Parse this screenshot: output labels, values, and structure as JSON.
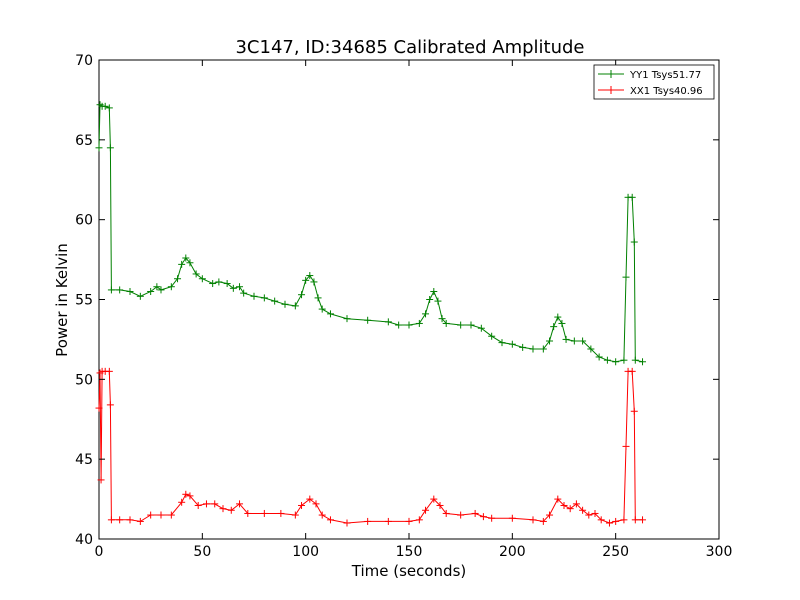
{
  "chart_data": {
    "type": "line",
    "title": "3C147, ID:34685 Calibrated Amplitude",
    "xlabel": "Time (seconds)",
    "ylabel": "Power in Kelvin",
    "xlim": [
      0,
      300
    ],
    "ylim": [
      40,
      70
    ],
    "xticks": [
      0,
      50,
      100,
      150,
      200,
      250,
      300
    ],
    "yticks": [
      40,
      45,
      50,
      55,
      60,
      65,
      70
    ],
    "grid": false,
    "legend_position": "top-right",
    "marker": "+",
    "series": [
      {
        "name": "YY1 Tsys51.77",
        "color": "#008000",
        "points": [
          [
            0,
            64.5
          ],
          [
            0.5,
            67.2
          ],
          [
            1.5,
            67.1
          ],
          [
            3,
            67.1
          ],
          [
            5,
            67.0
          ],
          [
            5.5,
            64.5
          ],
          [
            6,
            55.6
          ],
          [
            10,
            55.6
          ],
          [
            15,
            55.5
          ],
          [
            20,
            55.2
          ],
          [
            25,
            55.5
          ],
          [
            28,
            55.8
          ],
          [
            30,
            55.6
          ],
          [
            35,
            55.8
          ],
          [
            38,
            56.3
          ],
          [
            40,
            57.2
          ],
          [
            42,
            57.6
          ],
          [
            44,
            57.3
          ],
          [
            47,
            56.6
          ],
          [
            50,
            56.3
          ],
          [
            55,
            56.0
          ],
          [
            58,
            56.1
          ],
          [
            62,
            56.0
          ],
          [
            65,
            55.7
          ],
          [
            68,
            55.8
          ],
          [
            70,
            55.4
          ],
          [
            75,
            55.2
          ],
          [
            80,
            55.1
          ],
          [
            85,
            54.9
          ],
          [
            90,
            54.7
          ],
          [
            95,
            54.6
          ],
          [
            98,
            55.3
          ],
          [
            100,
            56.2
          ],
          [
            102,
            56.5
          ],
          [
            104,
            56.1
          ],
          [
            106,
            55.1
          ],
          [
            108,
            54.4
          ],
          [
            112,
            54.1
          ],
          [
            120,
            53.8
          ],
          [
            130,
            53.7
          ],
          [
            140,
            53.6
          ],
          [
            145,
            53.4
          ],
          [
            150,
            53.4
          ],
          [
            155,
            53.5
          ],
          [
            158,
            54.1
          ],
          [
            160,
            55.0
          ],
          [
            162,
            55.5
          ],
          [
            164,
            54.9
          ],
          [
            166,
            53.8
          ],
          [
            168,
            53.5
          ],
          [
            175,
            53.4
          ],
          [
            180,
            53.4
          ],
          [
            185,
            53.2
          ],
          [
            190,
            52.7
          ],
          [
            195,
            52.3
          ],
          [
            200,
            52.2
          ],
          [
            205,
            52.0
          ],
          [
            210,
            51.9
          ],
          [
            215,
            51.9
          ],
          [
            218,
            52.4
          ],
          [
            220,
            53.3
          ],
          [
            222,
            53.9
          ],
          [
            224,
            53.5
          ],
          [
            226,
            52.5
          ],
          [
            230,
            52.4
          ],
          [
            234,
            52.4
          ],
          [
            238,
            51.9
          ],
          [
            242,
            51.4
          ],
          [
            246,
            51.2
          ],
          [
            250,
            51.1
          ],
          [
            254,
            51.2
          ],
          [
            255,
            56.4
          ],
          [
            256,
            61.4
          ],
          [
            258,
            61.4
          ],
          [
            259,
            58.6
          ],
          [
            259.5,
            51.2
          ],
          [
            263,
            51.1
          ]
        ]
      },
      {
        "name": "XX1 Tsys40.96",
        "color": "#ff0000",
        "points": [
          [
            0,
            48.2
          ],
          [
            0.5,
            50.4
          ],
          [
            1,
            43.7
          ],
          [
            1.5,
            50.5
          ],
          [
            3,
            50.5
          ],
          [
            5,
            50.5
          ],
          [
            5.5,
            48.4
          ],
          [
            6,
            41.2
          ],
          [
            10,
            41.2
          ],
          [
            15,
            41.2
          ],
          [
            20,
            41.1
          ],
          [
            25,
            41.5
          ],
          [
            30,
            41.5
          ],
          [
            35,
            41.5
          ],
          [
            40,
            42.3
          ],
          [
            42,
            42.8
          ],
          [
            44,
            42.7
          ],
          [
            48,
            42.1
          ],
          [
            52,
            42.2
          ],
          [
            56,
            42.2
          ],
          [
            60,
            41.9
          ],
          [
            64,
            41.8
          ],
          [
            68,
            42.2
          ],
          [
            72,
            41.6
          ],
          [
            80,
            41.6
          ],
          [
            88,
            41.6
          ],
          [
            95,
            41.5
          ],
          [
            98,
            42.1
          ],
          [
            102,
            42.5
          ],
          [
            105,
            42.2
          ],
          [
            108,
            41.5
          ],
          [
            112,
            41.2
          ],
          [
            120,
            41.0
          ],
          [
            130,
            41.1
          ],
          [
            140,
            41.1
          ],
          [
            150,
            41.1
          ],
          [
            155,
            41.2
          ],
          [
            158,
            41.8
          ],
          [
            162,
            42.5
          ],
          [
            165,
            42.1
          ],
          [
            168,
            41.6
          ],
          [
            175,
            41.5
          ],
          [
            182,
            41.6
          ],
          [
            186,
            41.4
          ],
          [
            190,
            41.3
          ],
          [
            200,
            41.3
          ],
          [
            210,
            41.2
          ],
          [
            215,
            41.1
          ],
          [
            218,
            41.5
          ],
          [
            222,
            42.5
          ],
          [
            225,
            42.1
          ],
          [
            228,
            41.9
          ],
          [
            231,
            42.2
          ],
          [
            234,
            41.8
          ],
          [
            237,
            41.5
          ],
          [
            240,
            41.6
          ],
          [
            243,
            41.2
          ],
          [
            247,
            41.0
          ],
          [
            250,
            41.1
          ],
          [
            254,
            41.2
          ],
          [
            255,
            45.8
          ],
          [
            256,
            50.5
          ],
          [
            258,
            50.5
          ],
          [
            259,
            48.0
          ],
          [
            259.5,
            41.2
          ],
          [
            263,
            41.2
          ]
        ]
      }
    ]
  }
}
